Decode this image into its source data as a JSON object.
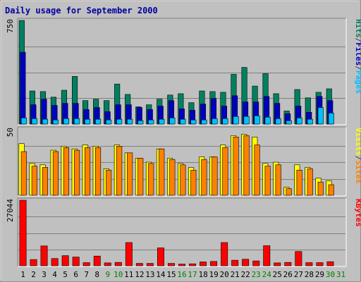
{
  "chart_data": {
    "type": "bar",
    "title": "Daily usage for September 2000",
    "categories": [
      "1",
      "2",
      "3",
      "4",
      "5",
      "6",
      "7",
      "8",
      "9",
      "10",
      "11",
      "12",
      "13",
      "14",
      "15",
      "16",
      "17",
      "18",
      "19",
      "20",
      "21",
      "22",
      "23",
      "24",
      "25",
      "26",
      "27",
      "28",
      "29",
      "30",
      "31"
    ],
    "weekend_days": [
      "9",
      "10",
      "16",
      "17",
      "23",
      "24",
      "30",
      "31"
    ],
    "grid": true,
    "panels": [
      {
        "name": "hits-files-pages",
        "max_label": "750",
        "ymax": 750,
        "legend": [
          "Pages",
          "/",
          "Files",
          "/",
          "Hits"
        ],
        "legend_colors": [
          "#00c0ff",
          "#404040",
          "#0000c0",
          "#404040",
          "#008060"
        ],
        "series": [
          {
            "name": "Hits",
            "color": "#008060",
            "values": [
              750,
              240,
              235,
              195,
              245,
              345,
              170,
              180,
              170,
              290,
              215,
              125,
              140,
              180,
              210,
              220,
              155,
              240,
              235,
              230,
              360,
              410,
              275,
              365,
              220,
              95,
              250,
              190,
              230,
              255,
              0
            ]
          },
          {
            "name": "Files",
            "color": "#0000c0",
            "values": [
              520,
              140,
              180,
              135,
              150,
              150,
              105,
              120,
              90,
              140,
              140,
              120,
              105,
              130,
              170,
              110,
              100,
              145,
              185,
              130,
              205,
              160,
              160,
              200,
              150,
              75,
              130,
              85,
              200,
              170,
              0
            ]
          },
          {
            "name": "Pages",
            "color": "#00c0ff",
            "values": [
              45,
              40,
              35,
              30,
              40,
              40,
              35,
              35,
              30,
              35,
              35,
              25,
              30,
              35,
              45,
              35,
              30,
              30,
              40,
              40,
              55,
              55,
              60,
              50,
              40,
              25,
              45,
              35,
              120,
              80,
              0
            ]
          }
        ]
      },
      {
        "name": "visits-sites",
        "max_label": "50",
        "ymax": 50,
        "legend": [
          "Sites",
          "/",
          "Visits"
        ],
        "legend_colors": [
          "#ff8000",
          "#404040",
          "#ffff00"
        ],
        "series": [
          {
            "name": "Visits",
            "color": "#ffff00",
            "values": [
              39,
              24,
              23,
              34,
              37,
              35,
              38,
              37,
              20,
              38,
              32,
              28,
              25,
              35,
              28,
              24,
              21,
              29,
              29,
              38,
              45,
              46,
              44,
              24,
              25,
              6,
              23,
              21,
              13,
              11,
              0
            ]
          },
          {
            "name": "Sites",
            "color": "#ff8000",
            "values": [
              33,
              22,
              21,
              33,
              36,
              34,
              36,
              36,
              19,
              37,
              32,
              28,
              24,
              35,
              27,
              23,
              19,
              27,
              29,
              36,
              44,
              45,
              38,
              22,
              23,
              5,
              19,
              20,
              10,
              8,
              0
            ]
          }
        ]
      },
      {
        "name": "kbytes",
        "max_label": "27044",
        "ymax": 27044,
        "legend": [
          "KBytes"
        ],
        "legend_colors": [
          "#ff0000"
        ],
        "series": [
          {
            "name": "KBytes",
            "color": "#ff0000",
            "values": [
              27044,
              2600,
              8200,
              3000,
              4200,
              3600,
              1300,
              4000,
              1200,
              1400,
              9600,
              1000,
              1000,
              7400,
              1000,
              700,
              800,
              1600,
              1800,
              9600,
              2300,
              2700,
              2000,
              8300,
              1200,
              1400,
              5900,
              1300,
              1300,
              1700,
              0
            ]
          }
        ]
      }
    ]
  }
}
